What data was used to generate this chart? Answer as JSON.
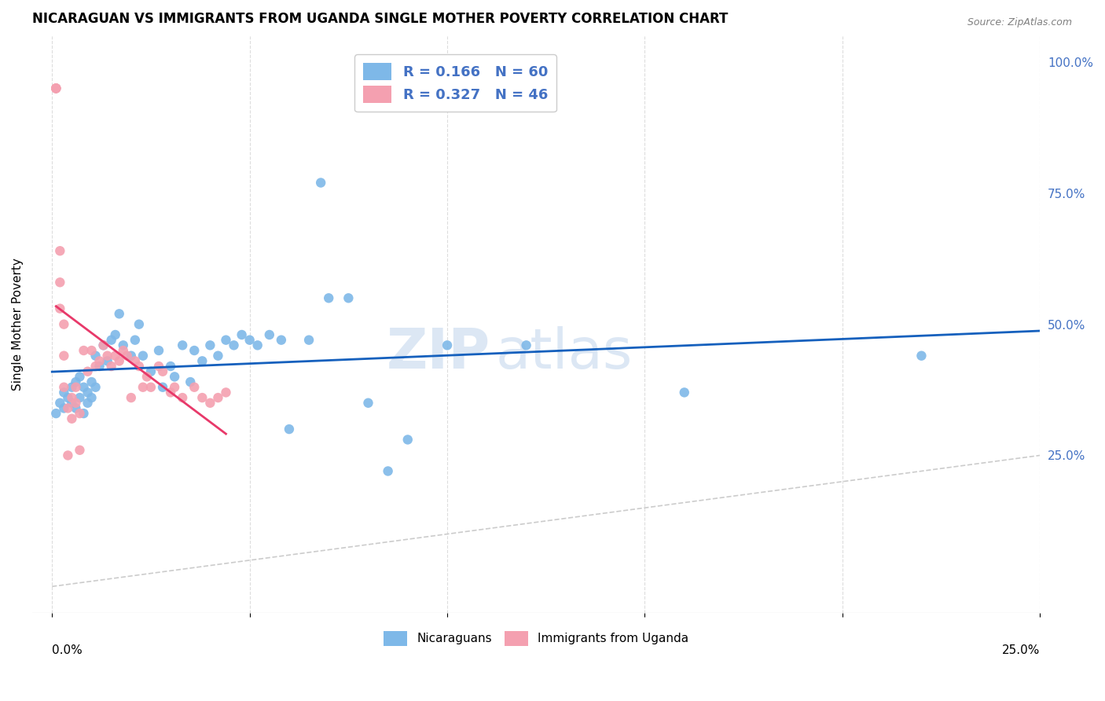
{
  "title": "NICARAGUAN VS IMMIGRANTS FROM UGANDA SINGLE MOTHER POVERTY CORRELATION CHART",
  "source": "Source: ZipAtlas.com",
  "ylabel": "Single Mother Poverty",
  "right_yticks": [
    "100.0%",
    "75.0%",
    "50.0%",
    "25.0%"
  ],
  "right_ytick_vals": [
    1.0,
    0.75,
    0.5,
    0.25
  ],
  "xlim": [
    0.0,
    0.25
  ],
  "ylim": [
    -0.05,
    1.05
  ],
  "blue_color": "#7EB8E8",
  "pink_color": "#F4A0B0",
  "blue_line_color": "#1560BD",
  "pink_line_color": "#E8396A",
  "diagonal_color": "#CCCCCC",
  "watermark_zip": "ZIP",
  "watermark_atlas": "atlas",
  "nicaraguan_x": [
    0.001,
    0.002,
    0.003,
    0.003,
    0.004,
    0.005,
    0.005,
    0.006,
    0.006,
    0.007,
    0.007,
    0.008,
    0.008,
    0.009,
    0.009,
    0.01,
    0.01,
    0.011,
    0.011,
    0.012,
    0.013,
    0.014,
    0.015,
    0.016,
    0.017,
    0.018,
    0.02,
    0.021,
    0.022,
    0.023,
    0.025,
    0.027,
    0.028,
    0.03,
    0.031,
    0.033,
    0.035,
    0.036,
    0.038,
    0.04,
    0.042,
    0.044,
    0.046,
    0.048,
    0.05,
    0.052,
    0.055,
    0.058,
    0.06,
    0.065,
    0.068,
    0.07,
    0.075,
    0.08,
    0.085,
    0.09,
    0.1,
    0.12,
    0.16,
    0.22
  ],
  "nicaraguan_y": [
    0.33,
    0.35,
    0.37,
    0.34,
    0.36,
    0.38,
    0.35,
    0.39,
    0.34,
    0.4,
    0.36,
    0.38,
    0.33,
    0.37,
    0.35,
    0.39,
    0.36,
    0.44,
    0.38,
    0.42,
    0.46,
    0.43,
    0.47,
    0.48,
    0.52,
    0.46,
    0.44,
    0.47,
    0.5,
    0.44,
    0.41,
    0.45,
    0.38,
    0.42,
    0.4,
    0.46,
    0.39,
    0.45,
    0.43,
    0.46,
    0.44,
    0.47,
    0.46,
    0.48,
    0.47,
    0.46,
    0.48,
    0.47,
    0.3,
    0.47,
    0.77,
    0.55,
    0.55,
    0.35,
    0.22,
    0.28,
    0.46,
    0.46,
    0.37,
    0.44
  ],
  "uganda_x": [
    0.001,
    0.001,
    0.001,
    0.001,
    0.002,
    0.002,
    0.002,
    0.003,
    0.003,
    0.003,
    0.004,
    0.004,
    0.005,
    0.005,
    0.006,
    0.006,
    0.007,
    0.007,
    0.008,
    0.009,
    0.01,
    0.011,
    0.012,
    0.013,
    0.014,
    0.015,
    0.016,
    0.017,
    0.018,
    0.019,
    0.02,
    0.021,
    0.022,
    0.023,
    0.024,
    0.025,
    0.027,
    0.028,
    0.03,
    0.031,
    0.033,
    0.036,
    0.038,
    0.04,
    0.042,
    0.044
  ],
  "uganda_y": [
    0.95,
    0.95,
    0.95,
    0.95,
    0.64,
    0.58,
    0.53,
    0.5,
    0.44,
    0.38,
    0.34,
    0.25,
    0.36,
    0.32,
    0.38,
    0.35,
    0.33,
    0.26,
    0.45,
    0.41,
    0.45,
    0.42,
    0.43,
    0.46,
    0.44,
    0.42,
    0.44,
    0.43,
    0.45,
    0.44,
    0.36,
    0.43,
    0.42,
    0.38,
    0.4,
    0.38,
    0.42,
    0.41,
    0.37,
    0.38,
    0.36,
    0.38,
    0.36,
    0.35,
    0.36,
    0.37
  ]
}
